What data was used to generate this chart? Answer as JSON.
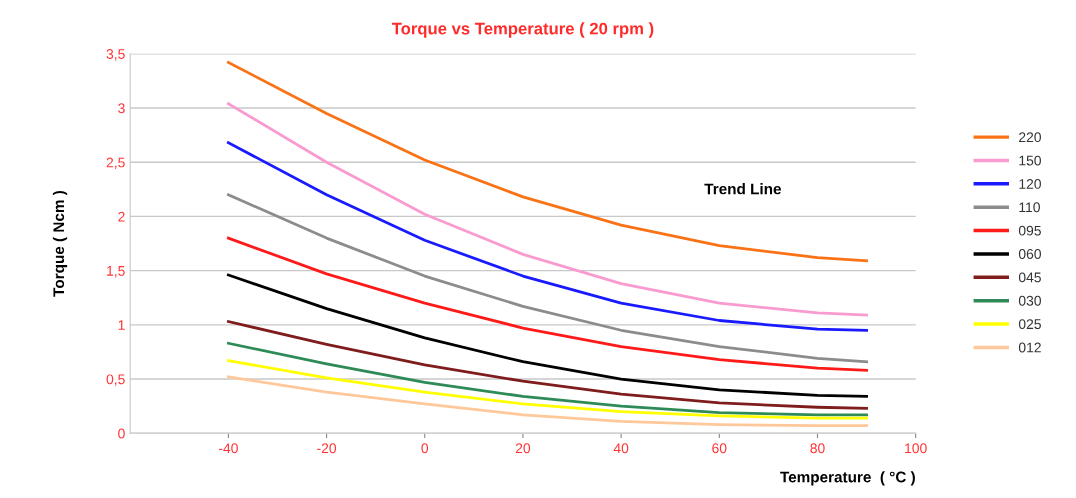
{
  "chart_data": {
    "type": "line",
    "title": "Torque vs Temperature ( 20 rpm )",
    "xlabel": "Temperature  ( °C )",
    "ylabel": "Torque ( Ncm )",
    "annotations": [
      "Trend Line"
    ],
    "x": [
      -40,
      -20,
      0,
      20,
      40,
      60,
      80,
      90
    ],
    "series": [
      {
        "name": "220",
        "color": "#f97316",
        "values": [
          3.42,
          2.95,
          2.52,
          2.18,
          1.92,
          1.73,
          1.62,
          1.59
        ]
      },
      {
        "name": "150",
        "color": "#f99bd0",
        "values": [
          3.04,
          2.5,
          2.02,
          1.65,
          1.38,
          1.2,
          1.11,
          1.09
        ]
      },
      {
        "name": "120",
        "color": "#1a1aff",
        "values": [
          2.68,
          2.2,
          1.78,
          1.45,
          1.2,
          1.04,
          0.96,
          0.95
        ]
      },
      {
        "name": "110",
        "color": "#8c8c8c",
        "values": [
          2.2,
          1.8,
          1.45,
          1.17,
          0.95,
          0.8,
          0.69,
          0.66
        ]
      },
      {
        "name": "095",
        "color": "#ff1a1a",
        "values": [
          1.8,
          1.47,
          1.2,
          0.97,
          0.8,
          0.68,
          0.6,
          0.58
        ]
      },
      {
        "name": "060",
        "color": "#000000",
        "values": [
          1.46,
          1.15,
          0.88,
          0.66,
          0.5,
          0.4,
          0.35,
          0.34
        ]
      },
      {
        "name": "045",
        "color": "#7f1d1d",
        "values": [
          1.03,
          0.82,
          0.63,
          0.48,
          0.36,
          0.28,
          0.24,
          0.23
        ]
      },
      {
        "name": "030",
        "color": "#2e8b57",
        "values": [
          0.83,
          0.64,
          0.47,
          0.34,
          0.25,
          0.19,
          0.17,
          0.17
        ]
      },
      {
        "name": "025",
        "color": "#ffff00",
        "values": [
          0.67,
          0.51,
          0.38,
          0.27,
          0.2,
          0.16,
          0.14,
          0.14
        ]
      },
      {
        "name": "012",
        "color": "#ffc89a",
        "values": [
          0.52,
          0.38,
          0.27,
          0.17,
          0.11,
          0.08,
          0.07,
          0.07
        ]
      }
    ],
    "xlim": [
      -60,
      100
    ],
    "xticks": [
      -40,
      -20,
      0,
      20,
      40,
      60,
      80,
      100
    ],
    "ylim": [
      0,
      3.5
    ],
    "yticks": [
      0,
      {
        "value": 0.5,
        "label": "0,5"
      },
      1,
      {
        "value": 1.5,
        "label": "1,5"
      },
      2,
      {
        "value": 2.5,
        "label": "2,5"
      },
      3,
      {
        "value": 3.5,
        "label": "3,5"
      }
    ],
    "grid": "y",
    "legend": "right",
    "marker": "none",
    "line_style": "solid"
  }
}
